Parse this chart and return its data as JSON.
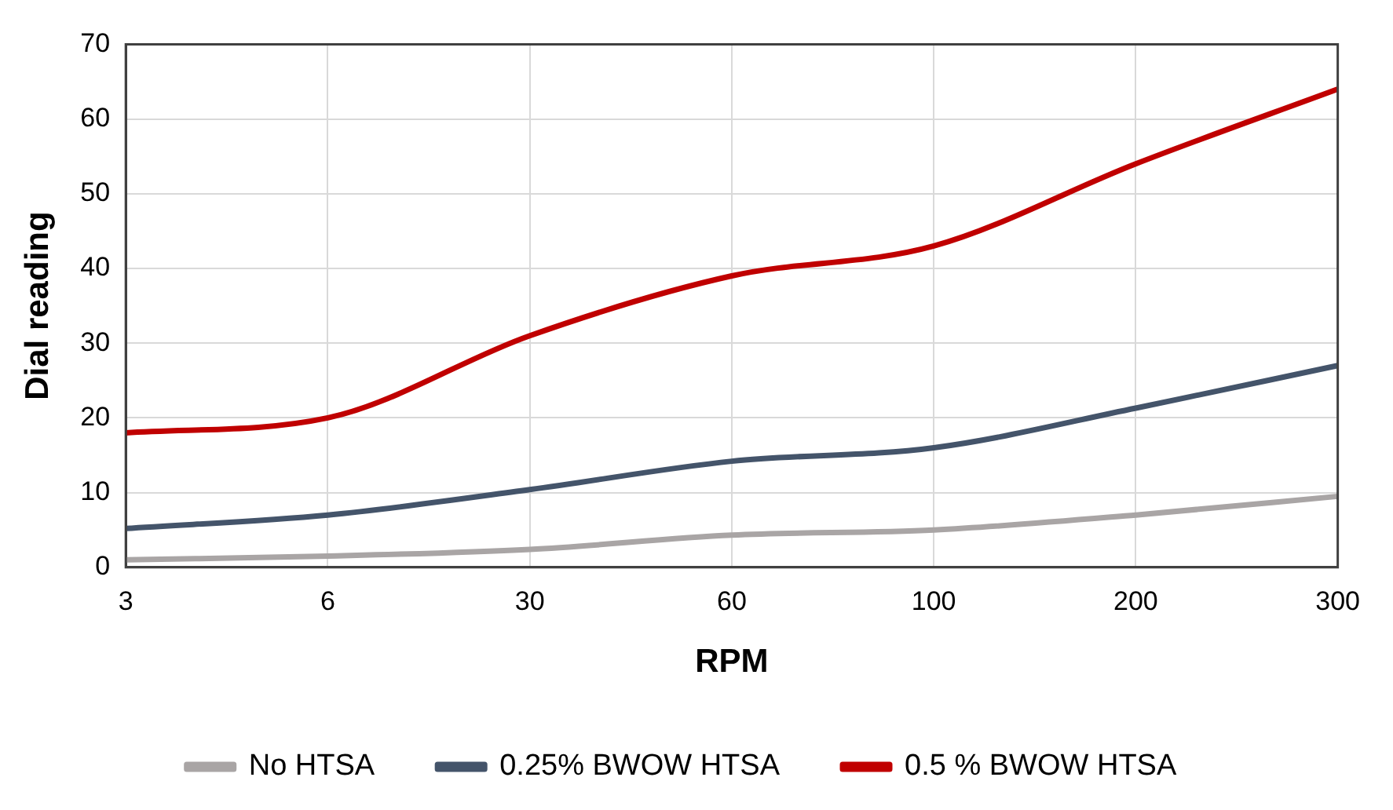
{
  "chart_data": {
    "type": "line",
    "xlabel": "RPM",
    "ylabel": "Dial reading",
    "categories": [
      "3",
      "6",
      "30",
      "60",
      "100",
      "200",
      "300"
    ],
    "series": [
      {
        "name": "No HTSA",
        "color": "#a9a5a5",
        "values": [
          1,
          1.5,
          2.4,
          4.3,
          5,
          7,
          9.5
        ]
      },
      {
        "name": "0.25% BWOW HTSA",
        "color": "#44546a",
        "values": [
          5.2,
          7,
          10.4,
          14.2,
          16,
          21.3,
          27
        ]
      },
      {
        "name": "0.5 % BWOW HTSA",
        "color": "#c00000",
        "values": [
          18,
          20,
          31,
          39,
          43,
          54,
          64
        ]
      }
    ],
    "ylim": [
      0,
      70
    ],
    "yticks": [
      0,
      10,
      20,
      30,
      40,
      50,
      60,
      70
    ],
    "grid": true,
    "legend": "bottom",
    "marker": "none",
    "line_style": "solid"
  }
}
